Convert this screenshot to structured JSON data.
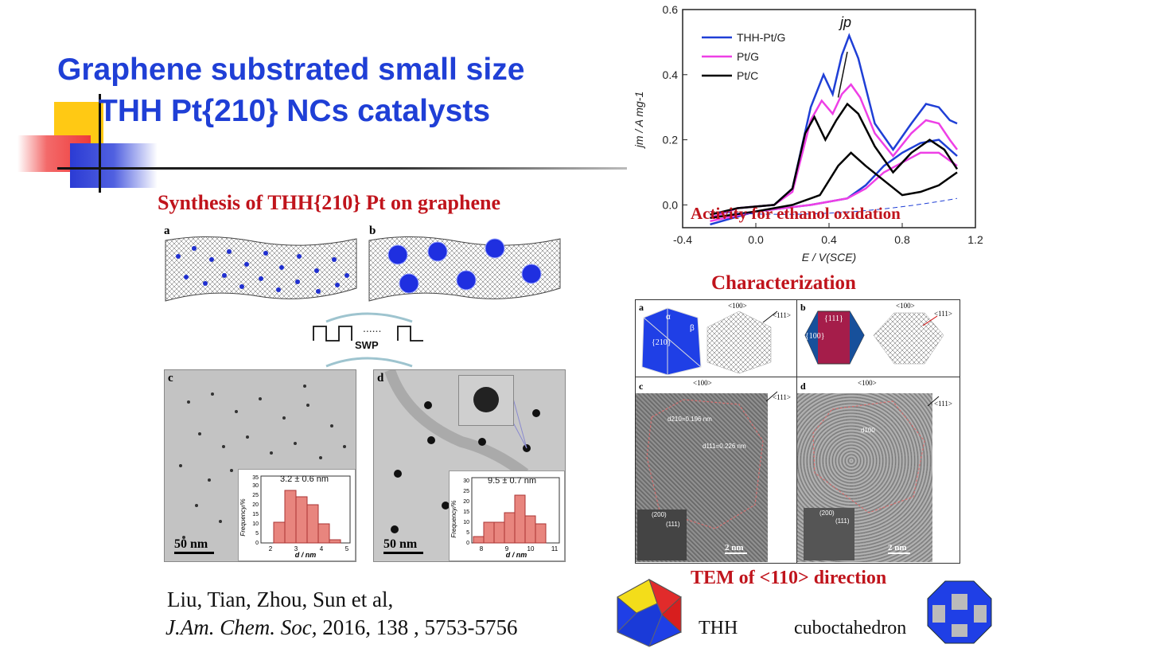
{
  "slide": {
    "title_line1": "Graphene substrated small size",
    "title_line2": "THH Pt{210} NCs catalysts",
    "synthesis_heading": "Synthesis of THH{210} Pt on graphene",
    "characterization_heading": "Characterization",
    "tem_heading": "TEM of <110> direction",
    "activity_label": "Activity for ethanol oxidation",
    "citation_line1": "Liu, Tian, Zhou, Sun et al,",
    "citation_journal": "J.Am. Chem. Soc,",
    "citation_rest": " 2016, 138 , 5753-5756",
    "shape_thh": "THH",
    "shape_cubo": "cuboctahedron",
    "colors": {
      "title": "#1f3fd6",
      "heading_red": "#c0141c",
      "thh_blue": "#1f3fd6",
      "pt_g_magenta": "#ee3fe6",
      "pt_c_black": "#000000"
    }
  },
  "synthesis": {
    "panel_a": "a",
    "panel_b": "b",
    "panel_c": "c",
    "panel_d": "d",
    "swp_label": "SWP",
    "dots": "......",
    "scale_c": "50 nm",
    "scale_d": "50 nm",
    "hist_c": {
      "label": "3.2 ± 0.6 nm",
      "ylabel": "Frequency/%",
      "xlabel": "d / nm",
      "yticks": [
        "0",
        "5",
        "10",
        "15",
        "20",
        "25",
        "30",
        "35"
      ],
      "xticks": [
        "2",
        "3",
        "4",
        "5"
      ]
    },
    "hist_d": {
      "label": "9.5 ± 0.7 nm",
      "ylabel": "Frequency/%",
      "xlabel": "d / nm",
      "yticks": [
        "0",
        "5",
        "10",
        "15",
        "20",
        "25",
        "30"
      ],
      "xticks": [
        "8",
        "9",
        "10",
        "11"
      ]
    }
  },
  "characterization": {
    "panel_a": "a",
    "panel_b": "b",
    "panel_c": "c",
    "panel_d": "d",
    "face_210": "{210}",
    "alpha": "α",
    "beta": "β",
    "face_111": "{111}",
    "face_100": "{100}",
    "dir_100": "<100>",
    "dir_111": "<111>",
    "d210": "d210=0.196 nm",
    "d111": "d111=0.226 nm",
    "d100": "d100",
    "fft_200": "(200)",
    "fft_111": "(111)",
    "scale_c": "2 nm",
    "scale_d": "2 nm"
  },
  "chart_data": {
    "type": "line",
    "title": "",
    "xlabel": "E / V(SCE)",
    "ylabel": "jm / A mg-1",
    "annotation": "jp",
    "xlim": [
      -0.4,
      1.2
    ],
    "ylim": [
      -0.07,
      0.6
    ],
    "xticks": [
      "-0.4",
      "0.0",
      "0.4",
      "0.8",
      "1.2"
    ],
    "yticks": [
      "0.0",
      "0.2",
      "0.4",
      "0.6"
    ],
    "legend_position": "top-left",
    "series": [
      {
        "name": "THH-Pt/G",
        "color": "#1f3fd6",
        "forward": [
          [
            -0.25,
            -0.04
          ],
          [
            -0.1,
            -0.01
          ],
          [
            0.1,
            0.0
          ],
          [
            0.2,
            0.05
          ],
          [
            0.3,
            0.3
          ],
          [
            0.37,
            0.4
          ],
          [
            0.42,
            0.34
          ],
          [
            0.47,
            0.46
          ],
          [
            0.51,
            0.52
          ],
          [
            0.56,
            0.45
          ],
          [
            0.65,
            0.25
          ],
          [
            0.75,
            0.17
          ],
          [
            0.85,
            0.25
          ],
          [
            0.93,
            0.31
          ],
          [
            1.0,
            0.3
          ],
          [
            1.06,
            0.26
          ],
          [
            1.1,
            0.25
          ]
        ],
        "backward": [
          [
            1.1,
            0.15
          ],
          [
            1.0,
            0.2
          ],
          [
            0.9,
            0.19
          ],
          [
            0.8,
            0.16
          ],
          [
            0.7,
            0.12
          ],
          [
            0.6,
            0.06
          ],
          [
            0.5,
            0.02
          ],
          [
            0.3,
            0.0
          ],
          [
            0.0,
            -0.02
          ],
          [
            -0.25,
            -0.06
          ]
        ]
      },
      {
        "name": "Pt/G",
        "color": "#ee3fe6",
        "forward": [
          [
            -0.25,
            -0.04
          ],
          [
            -0.1,
            -0.01
          ],
          [
            0.1,
            0.0
          ],
          [
            0.2,
            0.04
          ],
          [
            0.3,
            0.26
          ],
          [
            0.36,
            0.32
          ],
          [
            0.42,
            0.28
          ],
          [
            0.47,
            0.34
          ],
          [
            0.52,
            0.37
          ],
          [
            0.57,
            0.33
          ],
          [
            0.65,
            0.22
          ],
          [
            0.75,
            0.15
          ],
          [
            0.85,
            0.22
          ],
          [
            0.93,
            0.26
          ],
          [
            1.0,
            0.25
          ],
          [
            1.06,
            0.2
          ],
          [
            1.1,
            0.17
          ]
        ],
        "backward": [
          [
            1.1,
            0.12
          ],
          [
            1.0,
            0.16
          ],
          [
            0.9,
            0.16
          ],
          [
            0.8,
            0.13
          ],
          [
            0.7,
            0.1
          ],
          [
            0.6,
            0.05
          ],
          [
            0.5,
            0.02
          ],
          [
            0.3,
            0.0
          ],
          [
            0.0,
            -0.02
          ],
          [
            -0.25,
            -0.05
          ]
        ]
      },
      {
        "name": "Pt/C",
        "color": "#000000",
        "forward": [
          [
            -0.25,
            -0.03
          ],
          [
            -0.1,
            -0.01
          ],
          [
            0.1,
            0.0
          ],
          [
            0.2,
            0.05
          ],
          [
            0.27,
            0.22
          ],
          [
            0.32,
            0.27
          ],
          [
            0.38,
            0.2
          ],
          [
            0.44,
            0.26
          ],
          [
            0.5,
            0.31
          ],
          [
            0.56,
            0.28
          ],
          [
            0.65,
            0.18
          ],
          [
            0.75,
            0.1
          ],
          [
            0.85,
            0.16
          ],
          [
            0.95,
            0.2
          ],
          [
            1.03,
            0.17
          ],
          [
            1.1,
            0.11
          ]
        ],
        "backward": [
          [
            1.1,
            0.1
          ],
          [
            1.0,
            0.06
          ],
          [
            0.9,
            0.04
          ],
          [
            0.8,
            0.03
          ],
          [
            0.6,
            0.12
          ],
          [
            0.52,
            0.16
          ],
          [
            0.45,
            0.12
          ],
          [
            0.35,
            0.03
          ],
          [
            0.2,
            0.0
          ],
          [
            0.0,
            -0.02
          ],
          [
            -0.25,
            -0.04
          ]
        ]
      }
    ]
  }
}
